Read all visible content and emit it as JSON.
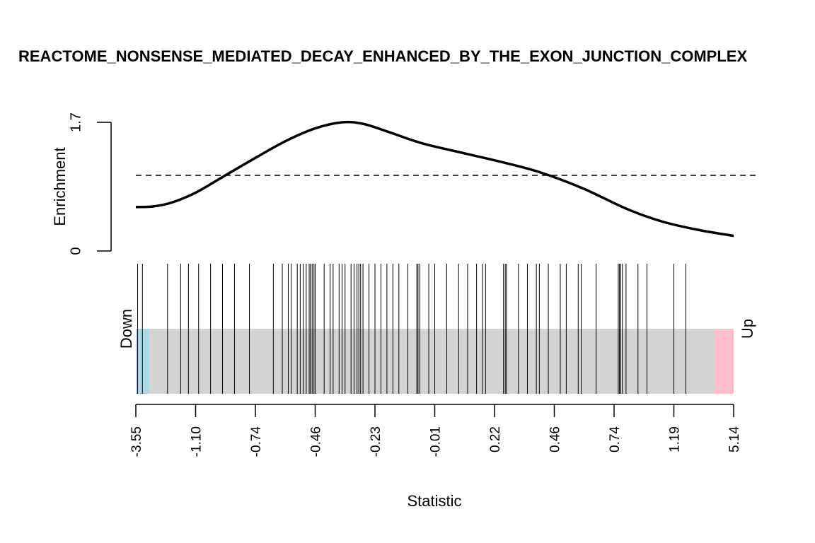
{
  "chart_data": {
    "type": "barcode-enrichment",
    "title": "REACTOME_NONSENSE_MEDIATED_DECAY_ENHANCED_BY_THE_EXON_JUNCTION_COMPLEX",
    "xlabel": "Statistic",
    "ylabel": "Enrichment",
    "ylim": [
      0,
      1.7
    ],
    "yticks": [
      "0",
      "1.7"
    ],
    "xtick_labels": [
      "-3.55",
      "-1.10",
      "-0.74",
      "-0.46",
      "-0.23",
      "-0.01",
      "0.22",
      "0.46",
      "0.74",
      "1.19",
      "5.14"
    ],
    "reference_line": 1.0,
    "curve": [
      {
        "x": 0.0,
        "y": 0.58
      },
      {
        "x": 0.03,
        "y": 0.59
      },
      {
        "x": 0.06,
        "y": 0.64
      },
      {
        "x": 0.1,
        "y": 0.77
      },
      {
        "x": 0.15,
        "y": 1.0
      },
      {
        "x": 0.2,
        "y": 1.23
      },
      {
        "x": 0.25,
        "y": 1.45
      },
      {
        "x": 0.3,
        "y": 1.62
      },
      {
        "x": 0.345,
        "y": 1.7
      },
      {
        "x": 0.38,
        "y": 1.68
      },
      {
        "x": 0.42,
        "y": 1.58
      },
      {
        "x": 0.48,
        "y": 1.42
      },
      {
        "x": 0.55,
        "y": 1.29
      },
      {
        "x": 0.62,
        "y": 1.16
      },
      {
        "x": 0.68,
        "y": 1.03
      },
      {
        "x": 0.75,
        "y": 0.82
      },
      {
        "x": 0.82,
        "y": 0.56
      },
      {
        "x": 0.88,
        "y": 0.39
      },
      {
        "x": 0.94,
        "y": 0.28
      },
      {
        "x": 1.0,
        "y": 0.2
      }
    ],
    "positions": [
      0.003,
      0.011,
      0.053,
      0.075,
      0.088,
      0.105,
      0.125,
      0.145,
      0.165,
      0.19,
      0.23,
      0.245,
      0.255,
      0.26,
      0.27,
      0.275,
      0.28,
      0.285,
      0.29,
      0.292,
      0.295,
      0.298,
      0.3,
      0.315,
      0.325,
      0.33,
      0.34,
      0.345,
      0.35,
      0.36,
      0.365,
      0.37,
      0.373,
      0.376,
      0.38,
      0.39,
      0.4,
      0.41,
      0.42,
      0.43,
      0.44,
      0.455,
      0.47,
      0.472,
      0.475,
      0.49,
      0.5,
      0.52,
      0.54,
      0.555,
      0.57,
      0.58,
      0.585,
      0.615,
      0.618,
      0.62,
      0.64,
      0.655,
      0.67,
      0.675,
      0.69,
      0.71,
      0.72,
      0.74,
      0.745,
      0.77,
      0.82,
      0.807,
      0.809,
      0.811,
      0.814,
      0.84,
      0.855,
      0.9,
      0.92
    ],
    "bar_colors": {
      "down": "#add8e6",
      "neutral": "#d3d3d3",
      "up": "#ffc0cb"
    },
    "bar_labels": {
      "down": "Down",
      "up": "Up"
    },
    "down_fraction": 0.022,
    "up_fraction": 0.033
  }
}
